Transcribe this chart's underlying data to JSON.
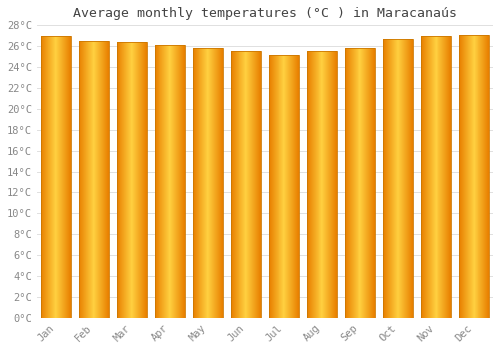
{
  "title": "Average monthly temperatures (°C ) in Maracanaús",
  "months": [
    "Jan",
    "Feb",
    "Mar",
    "Apr",
    "May",
    "Jun",
    "Jul",
    "Aug",
    "Sep",
    "Oct",
    "Nov",
    "Dec"
  ],
  "values": [
    27.0,
    26.5,
    26.4,
    26.1,
    25.8,
    25.5,
    25.2,
    25.5,
    25.8,
    26.7,
    27.0,
    27.1
  ],
  "bar_color_left": "#E88000",
  "bar_color_mid": "#FFD040",
  "bar_color_right": "#E88000",
  "bar_edge_color": "#CC7700",
  "background_color": "#ffffff",
  "plot_bg_color": "#ffffff",
  "grid_color": "#e0e0e0",
  "title_color": "#444444",
  "tick_color": "#888888",
  "ylim": [
    0,
    28
  ],
  "yticks": [
    0,
    2,
    4,
    6,
    8,
    10,
    12,
    14,
    16,
    18,
    20,
    22,
    24,
    26,
    28
  ],
  "title_fontsize": 9.5,
  "tick_fontsize": 7.5,
  "bar_width": 0.78
}
